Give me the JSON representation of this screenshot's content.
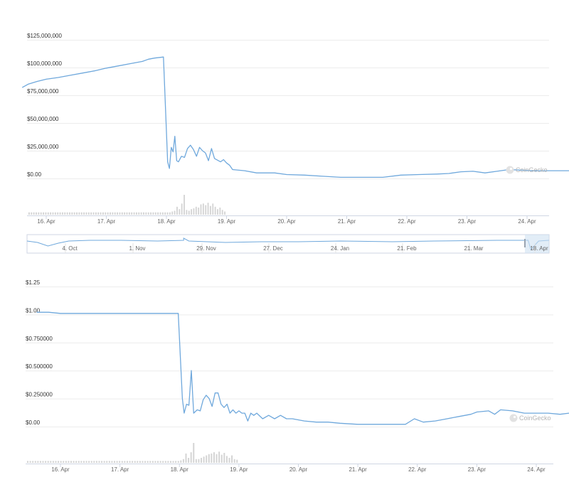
{
  "colors": {
    "line": "#6fa8dc",
    "volume": "#d4d4d4",
    "grid": "#ececec",
    "navigator_fill": "#cfe1f2"
  },
  "watermark": "CoinGecko",
  "chart_data": [
    {
      "type": "line",
      "name": "market-cap",
      "yticks": [
        "$125,000,000",
        "$100,000,000",
        "$75,000,000",
        "$50,000,000",
        "$25,000,000",
        "$0.00"
      ],
      "ylim": [
        0,
        125000000
      ],
      "xlim": [
        15.6,
        24.7
      ],
      "xticks": [
        "16. Apr",
        "17. Apr",
        "18. Apr",
        "19. Apr",
        "20. Apr",
        "21. Apr",
        "22. Apr",
        "23. Apr",
        "24. Apr"
      ],
      "xtick_values": [
        16,
        17,
        18,
        19,
        20,
        21,
        22,
        23,
        24
      ],
      "points": [
        [
          15.6,
          82000000
        ],
        [
          15.7,
          85000000
        ],
        [
          15.85,
          87500000
        ],
        [
          16.0,
          89500000
        ],
        [
          16.2,
          91000000
        ],
        [
          16.4,
          93000000
        ],
        [
          16.6,
          95000000
        ],
        [
          16.8,
          97000000
        ],
        [
          17.0,
          99500000
        ],
        [
          17.2,
          101500000
        ],
        [
          17.4,
          103500000
        ],
        [
          17.6,
          105500000
        ],
        [
          17.7,
          107500000
        ],
        [
          17.8,
          108500000
        ],
        [
          17.95,
          109500000
        ],
        [
          18.02,
          15000000
        ],
        [
          18.05,
          9000000
        ],
        [
          18.08,
          28000000
        ],
        [
          18.11,
          24000000
        ],
        [
          18.14,
          38000000
        ],
        [
          18.17,
          16000000
        ],
        [
          18.2,
          15000000
        ],
        [
          18.25,
          20000000
        ],
        [
          18.3,
          19000000
        ],
        [
          18.35,
          27000000
        ],
        [
          18.4,
          30000000
        ],
        [
          18.45,
          26000000
        ],
        [
          18.5,
          20000000
        ],
        [
          18.55,
          28000000
        ],
        [
          18.6,
          25000000
        ],
        [
          18.65,
          23000000
        ],
        [
          18.7,
          16000000
        ],
        [
          18.75,
          27000000
        ],
        [
          18.8,
          18000000
        ],
        [
          18.9,
          15000000
        ],
        [
          18.95,
          17000000
        ],
        [
          19.0,
          14000000
        ],
        [
          19.05,
          12000000
        ],
        [
          19.1,
          8000000
        ],
        [
          19.3,
          7000000
        ],
        [
          19.5,
          5000000
        ],
        [
          19.8,
          5000000
        ],
        [
          20.0,
          3500000
        ],
        [
          20.3,
          3000000
        ],
        [
          20.6,
          2000000
        ],
        [
          20.9,
          1000000
        ],
        [
          21.2,
          1000000
        ],
        [
          21.6,
          1000000
        ],
        [
          21.9,
          3000000
        ],
        [
          22.2,
          3500000
        ],
        [
          22.5,
          4000000
        ],
        [
          22.7,
          4500000
        ],
        [
          22.9,
          6000000
        ],
        [
          23.1,
          6500000
        ],
        [
          23.3,
          5000000
        ],
        [
          23.5,
          6500000
        ],
        [
          23.7,
          8000000
        ],
        [
          23.9,
          7500000
        ],
        [
          24.1,
          7000000
        ],
        [
          24.4,
          7000000
        ],
        [
          24.7,
          7000000
        ]
      ],
      "volume": [
        3,
        3,
        3,
        3,
        3,
        3,
        3,
        3,
        3,
        3,
        3,
        3,
        3,
        3,
        3,
        3,
        3,
        3,
        3,
        3,
        3,
        3,
        3,
        3,
        3,
        3,
        3,
        3,
        3,
        3,
        3,
        3,
        3,
        3,
        3,
        3,
        3,
        3,
        3,
        3,
        3,
        3,
        3,
        3,
        3,
        3,
        3,
        3,
        3,
        3,
        3,
        3,
        3,
        3,
        3,
        3,
        3,
        3,
        3,
        3,
        4,
        5,
        10,
        7,
        14,
        25,
        6,
        5,
        7,
        8,
        10,
        9,
        13,
        14,
        12,
        15,
        11,
        14,
        10,
        7,
        9,
        6,
        4
      ],
      "navigator": {
        "xticks": [
          "4. Oct",
          "1. Nov",
          "29. Nov",
          "27. Dec",
          "24. Jan",
          "21. Feb",
          "21. Mar",
          "18. Apr"
        ]
      }
    },
    {
      "type": "line",
      "name": "price",
      "yticks": [
        "$1.25",
        "$1.00",
        "$0.750000",
        "$0.500000",
        "$0.250000",
        "$0.00"
      ],
      "ylim": [
        0,
        1.25
      ],
      "xlim": [
        15.6,
        24.7
      ],
      "xticks": [
        "16. Apr",
        "17. Apr",
        "18. Apr",
        "19. Apr",
        "20. Apr",
        "21. Apr",
        "22. Apr",
        "23. Apr",
        "24. Apr"
      ],
      "xtick_values": [
        16,
        17,
        18,
        19,
        20,
        21,
        22,
        23,
        24
      ],
      "points": [
        [
          15.6,
          1.02
        ],
        [
          15.8,
          1.02
        ],
        [
          16.0,
          1.01
        ],
        [
          16.3,
          1.01
        ],
        [
          16.6,
          1.01
        ],
        [
          16.9,
          1.01
        ],
        [
          17.2,
          1.01
        ],
        [
          17.5,
          1.01
        ],
        [
          17.8,
          1.01
        ],
        [
          17.98,
          1.01
        ],
        [
          18.05,
          0.25
        ],
        [
          18.08,
          0.12
        ],
        [
          18.12,
          0.2
        ],
        [
          18.16,
          0.19
        ],
        [
          18.2,
          0.5
        ],
        [
          18.24,
          0.12
        ],
        [
          18.3,
          0.15
        ],
        [
          18.35,
          0.14
        ],
        [
          18.4,
          0.24
        ],
        [
          18.45,
          0.28
        ],
        [
          18.5,
          0.25
        ],
        [
          18.55,
          0.18
        ],
        [
          18.6,
          0.3
        ],
        [
          18.65,
          0.3
        ],
        [
          18.7,
          0.2
        ],
        [
          18.75,
          0.17
        ],
        [
          18.8,
          0.2
        ],
        [
          18.85,
          0.12
        ],
        [
          18.9,
          0.15
        ],
        [
          18.95,
          0.12
        ],
        [
          19.0,
          0.14
        ],
        [
          19.05,
          0.12
        ],
        [
          19.1,
          0.12
        ],
        [
          19.15,
          0.05
        ],
        [
          19.2,
          0.12
        ],
        [
          19.25,
          0.1
        ],
        [
          19.3,
          0.12
        ],
        [
          19.4,
          0.07
        ],
        [
          19.5,
          0.1
        ],
        [
          19.6,
          0.07
        ],
        [
          19.7,
          0.1
        ],
        [
          19.8,
          0.07
        ],
        [
          19.9,
          0.07
        ],
        [
          20.1,
          0.05
        ],
        [
          20.3,
          0.04
        ],
        [
          20.5,
          0.04
        ],
        [
          20.7,
          0.03
        ],
        [
          21.0,
          0.02
        ],
        [
          21.3,
          0.02
        ],
        [
          21.6,
          0.02
        ],
        [
          21.8,
          0.02
        ],
        [
          21.95,
          0.07
        ],
        [
          22.1,
          0.04
        ],
        [
          22.3,
          0.05
        ],
        [
          22.5,
          0.07
        ],
        [
          22.7,
          0.09
        ],
        [
          22.9,
          0.11
        ],
        [
          23.0,
          0.13
        ],
        [
          23.2,
          0.14
        ],
        [
          23.3,
          0.11
        ],
        [
          23.4,
          0.15
        ],
        [
          23.6,
          0.14
        ],
        [
          23.8,
          0.12
        ],
        [
          24.0,
          0.12
        ],
        [
          24.2,
          0.12
        ],
        [
          24.4,
          0.11
        ],
        [
          24.55,
          0.12
        ],
        [
          24.7,
          0.12
        ]
      ],
      "volume": [
        3,
        3,
        3,
        3,
        3,
        3,
        3,
        3,
        3,
        3,
        3,
        3,
        3,
        3,
        3,
        3,
        3,
        3,
        3,
        3,
        3,
        3,
        3,
        3,
        3,
        3,
        3,
        3,
        3,
        3,
        3,
        3,
        3,
        3,
        3,
        3,
        3,
        3,
        3,
        3,
        3,
        3,
        3,
        3,
        3,
        3,
        3,
        3,
        3,
        3,
        3,
        3,
        3,
        3,
        3,
        3,
        3,
        3,
        3,
        3,
        4,
        6,
        15,
        8,
        17,
        32,
        6,
        6,
        8,
        10,
        12,
        14,
        15,
        17,
        14,
        18,
        13,
        16,
        11,
        8,
        12,
        6,
        5
      ]
    }
  ]
}
